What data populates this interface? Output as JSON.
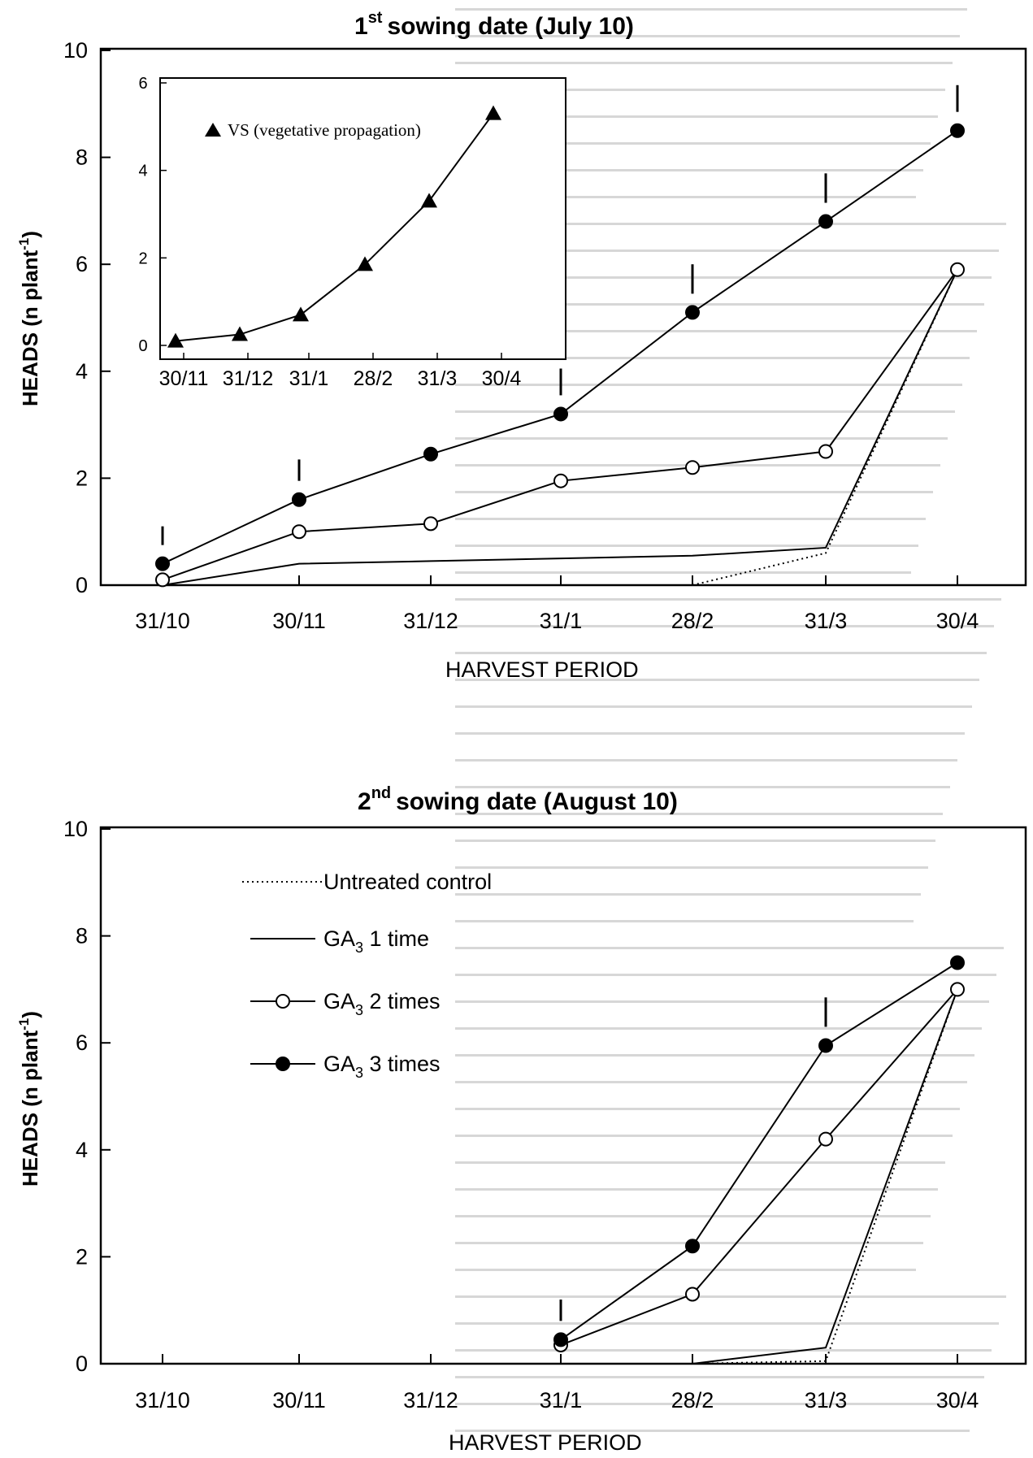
{
  "charts": [
    {
      "title": "sowing date (July 10)",
      "title_prefix": "1",
      "title_sup": "st",
      "ylabel": "HEADS (n plant",
      "ylabel_sup": "-1",
      "ylabel_close": ")",
      "xlabel": "HARVEST PERIOD",
      "x_ticks": [
        "31/10",
        "30/11",
        "31/12",
        "31/1",
        "28/2",
        "31/3",
        "30/4"
      ],
      "y_ticks": [
        "0",
        "2",
        "4",
        "6",
        "8",
        "10"
      ]
    },
    {
      "title": "sowing date (August 10)",
      "title_prefix": "2",
      "title_sup": "nd",
      "ylabel": "HEADS (n plant",
      "ylabel_sup": "-1",
      "ylabel_close": ")",
      "xlabel": "HARVEST PERIOD",
      "x_ticks": [
        "31/10",
        "30/11",
        "31/12",
        "31/1",
        "28/2",
        "31/3",
        "30/4"
      ],
      "y_ticks": [
        "0",
        "2",
        "4",
        "6",
        "8",
        "10"
      ]
    }
  ],
  "legend": {
    "untreated": "Untreated control",
    "ga1": "GA",
    "ga1_sub": "3",
    "ga1_tail": " 1 time",
    "ga2": "GA",
    "ga2_sub": "3",
    "ga2_tail": " 2 times",
    "ga3": "GA",
    "ga3_sub": "3",
    "ga3_tail": " 3 times"
  },
  "inset": {
    "legend_label": "VS (vegetative propagation)",
    "x_ticks": [
      "30/11",
      "31/12",
      "31/1",
      "28/2",
      "31/3",
      "30/4"
    ],
    "y_ticks": [
      "0",
      "2",
      "4",
      "6"
    ]
  },
  "chart_data": [
    {
      "type": "line",
      "title": "1st sowing date (July 10)",
      "xlabel": "HARVEST PERIOD",
      "ylabel": "HEADS (n plant-1)",
      "categories": [
        "31/10",
        "30/11",
        "31/12",
        "31/1",
        "28/2",
        "31/3",
        "30/4"
      ],
      "ylim": [
        0,
        10
      ],
      "series": [
        {
          "name": "Untreated control",
          "style": "dotted",
          "values": [
            null,
            null,
            null,
            null,
            0.0,
            0.6,
            5.9
          ]
        },
        {
          "name": "GA3 1 time",
          "style": "solid",
          "values": [
            0.0,
            0.4,
            0.45,
            0.5,
            0.55,
            0.7,
            5.9
          ]
        },
        {
          "name": "GA3 2 times",
          "style": "solid-open-circle",
          "values": [
            0.1,
            1.0,
            1.15,
            1.95,
            2.2,
            2.5,
            5.9
          ]
        },
        {
          "name": "GA3 3 times",
          "style": "solid-filled-circle",
          "values": [
            0.4,
            1.6,
            2.45,
            3.2,
            5.1,
            6.8,
            8.5
          ]
        }
      ],
      "error_bars": [
        0.35,
        0.4,
        null,
        0.5,
        0.55,
        0.55,
        0.5
      ],
      "inset": {
        "type": "line",
        "series": [
          {
            "name": "VS (vegetative propagation)",
            "marker": "filled-triangle"
          }
        ],
        "categories": [
          "30/11",
          "31/12",
          "31/1",
          "28/2",
          "31/3",
          "30/4"
        ],
        "values": [
          0.1,
          0.25,
          0.7,
          1.85,
          3.3,
          5.3
        ],
        "ylim": [
          0,
          6
        ]
      }
    },
    {
      "type": "line",
      "title": "2nd sowing date (August 10)",
      "xlabel": "HARVEST PERIOD",
      "ylabel": "HEADS (n plant-1)",
      "categories": [
        "31/10",
        "30/11",
        "31/12",
        "31/1",
        "28/2",
        "31/3",
        "30/4"
      ],
      "ylim": [
        0,
        10
      ],
      "series": [
        {
          "name": "Untreated control",
          "style": "dotted",
          "values": [
            null,
            null,
            null,
            null,
            0.0,
            0.05,
            7.0
          ]
        },
        {
          "name": "GA3 1 time",
          "style": "solid",
          "values": [
            null,
            null,
            null,
            null,
            0.0,
            0.3,
            7.0
          ]
        },
        {
          "name": "GA3 2 times",
          "style": "solid-open-circle",
          "values": [
            null,
            null,
            null,
            0.35,
            1.3,
            4.2,
            7.0
          ]
        },
        {
          "name": "GA3 3 times",
          "style": "solid-filled-circle",
          "values": [
            null,
            null,
            null,
            0.45,
            2.2,
            5.95,
            7.5
          ]
        }
      ],
      "error_bars": [
        null,
        null,
        null,
        0.4,
        null,
        0.55,
        null
      ]
    }
  ]
}
